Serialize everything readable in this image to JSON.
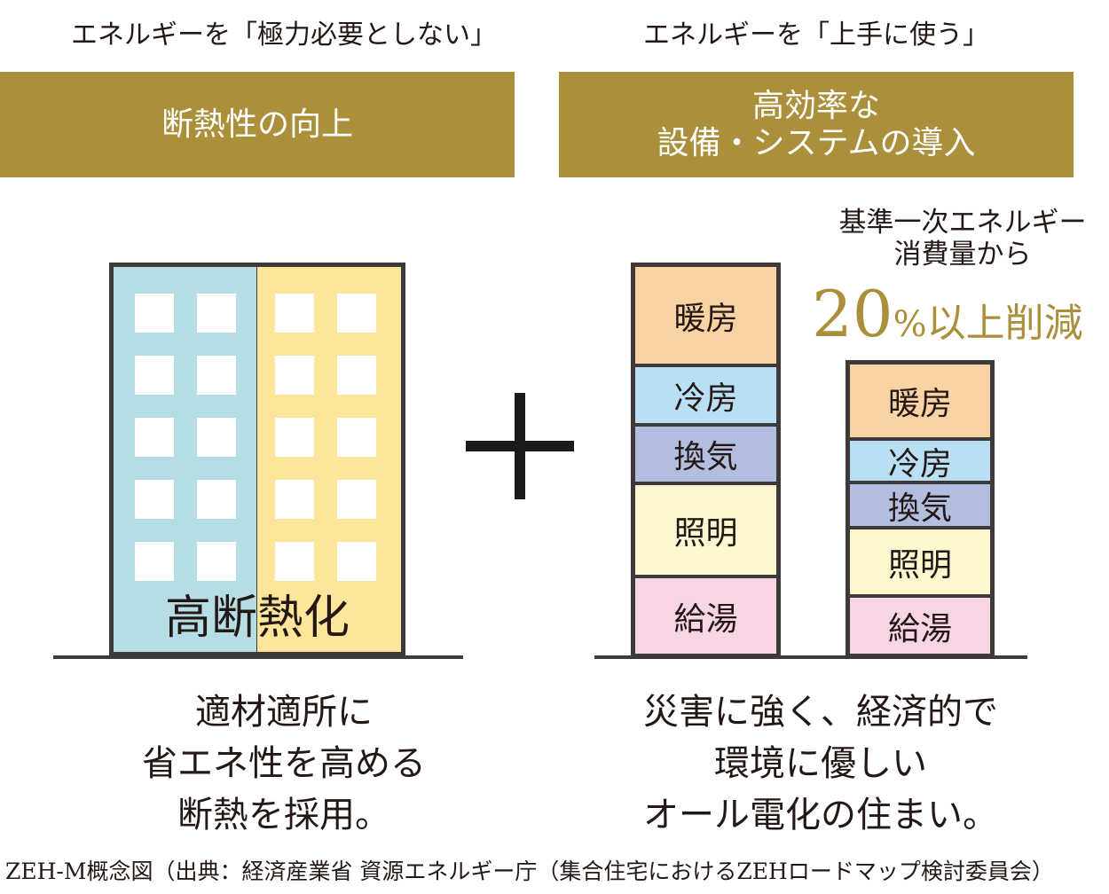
{
  "headings": {
    "left": "エネルギーを「極力必要としない」",
    "right": "エネルギーを「上手に使う」"
  },
  "bands": {
    "left": "断熱性の向上",
    "right_line1": "高効率な",
    "right_line2": "設備・システムの導入"
  },
  "building": {
    "label": "高断熱化"
  },
  "reduction": {
    "line1": "基準一次エネルギー",
    "line2": "消費量から",
    "percent": "20",
    "percent_sign": "%",
    "suffix": "以上削減"
  },
  "bars": {
    "before": [
      {
        "label": "暖房",
        "color": "#f9d3a4"
      },
      {
        "label": "冷房",
        "color": "#b8dff3"
      },
      {
        "label": "換気",
        "color": "#b3bde0"
      },
      {
        "label": "照明",
        "color": "#fdf6cf"
      },
      {
        "label": "給湯",
        "color": "#f8d5e5"
      }
    ],
    "after": [
      {
        "label": "暖房",
        "color": "#f9d3a4"
      },
      {
        "label": "冷房",
        "color": "#b8dff3"
      },
      {
        "label": "換気",
        "color": "#b3bde0"
      },
      {
        "label": "照明",
        "color": "#fdf6cf"
      },
      {
        "label": "給湯",
        "color": "#f8d5e5"
      }
    ]
  },
  "captions": {
    "left_line1": "適材適所に",
    "left_line2": "省エネ性を高める",
    "left_line3": "断熱を採用。",
    "right_line1": "災害に強く、経済的で",
    "right_line2": "環境に優しい",
    "right_line3": "オール電化の住まい。"
  },
  "footer": "ZEH-M概念図（出典：経済産業省 資源エネルギー庁（集合住宅におけるZEHロードマップ検討委員会）",
  "colors": {
    "gold": "#ab8f3b",
    "dark": "#3e3a39"
  }
}
